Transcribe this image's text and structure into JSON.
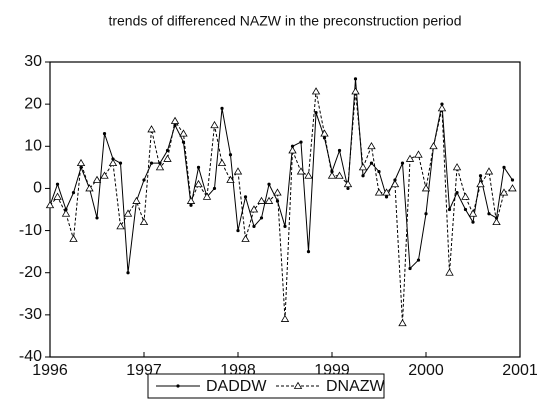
{
  "chart_data": {
    "type": "line",
    "title": "trends of differenced NAZW in the preconstruction period",
    "x": [
      1996.0,
      1996.08,
      1996.17,
      1996.25,
      1996.33,
      1996.42,
      1996.5,
      1996.58,
      1996.67,
      1996.75,
      1996.83,
      1996.92,
      1997.0,
      1997.08,
      1997.17,
      1997.25,
      1997.33,
      1997.42,
      1997.5,
      1997.58,
      1997.67,
      1997.75,
      1997.83,
      1997.92,
      1998.0,
      1998.08,
      1998.17,
      1998.25,
      1998.33,
      1998.42,
      1998.5,
      1998.58,
      1998.67,
      1998.75,
      1998.83,
      1998.92,
      1999.0,
      1999.08,
      1999.17,
      1999.25,
      1999.33,
      1999.42,
      1999.5,
      1999.58,
      1999.67,
      1999.75,
      1999.83,
      1999.92,
      2000.0,
      2000.08,
      2000.17,
      2000.25,
      2000.33,
      2000.42,
      2000.5,
      2000.58,
      2000.67,
      2000.75,
      2000.83,
      2000.92
    ],
    "series": [
      {
        "name": "DADDW",
        "color": "#000000",
        "marker": "dot",
        "dash": false,
        "values": [
          -4,
          1,
          -5,
          -1,
          5,
          0,
          -7,
          13,
          7,
          6,
          -20,
          -3,
          2,
          6,
          6,
          9,
          15,
          11,
          -4,
          5,
          -2,
          0,
          19,
          8,
          -10,
          -2,
          -9,
          -7,
          1,
          -3,
          -9,
          10,
          11,
          -15,
          18,
          12,
          4,
          9,
          0,
          26,
          3,
          6,
          4,
          -2,
          2,
          6,
          -19,
          -17,
          -6,
          10,
          20,
          -5,
          -1,
          -5,
          -8,
          3,
          -6,
          -7,
          5,
          2
        ]
      },
      {
        "name": "DNAZW",
        "color": "#000000",
        "marker": "triangle",
        "dash": true,
        "values": [
          -4,
          -2,
          -6,
          -12,
          6,
          0,
          2,
          3,
          6,
          -9,
          -6,
          -3,
          -8,
          14,
          5,
          7,
          16,
          13,
          -3,
          1,
          -2,
          15,
          6,
          2,
          4,
          -12,
          -5,
          -3,
          -3,
          -1,
          -31,
          9,
          4,
          3,
          23,
          13,
          3,
          3,
          1,
          23,
          5,
          10,
          -1,
          -1,
          1,
          -32,
          7,
          8,
          0,
          10,
          19,
          -20,
          5,
          -2,
          -6,
          1,
          4,
          -8,
          -1,
          0
        ]
      }
    ],
    "xlim": [
      1996,
      2001
    ],
    "xticks": [
      1996,
      1997,
      1998,
      1999,
      2000,
      2001
    ],
    "ylim": [
      -40,
      30
    ],
    "yticks": [
      -40,
      -30,
      -20,
      -10,
      0,
      10,
      20,
      30
    ],
    "legend": "bottom"
  }
}
